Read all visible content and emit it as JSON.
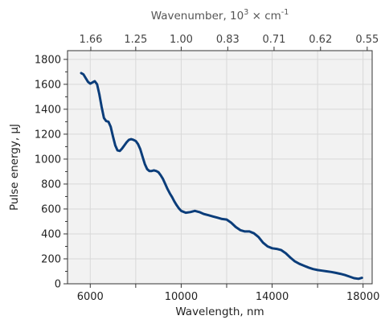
{
  "chart_data": {
    "type": "line",
    "xlabel": "Wavelength, nm",
    "ylabel": "Pulse energy, µJ",
    "top_axis": {
      "label_main": "Wavenumber, 10",
      "label_sup1": "3",
      "label_mid": " × cm",
      "label_sup2": "-1",
      "ticks": [
        {
          "label": "1.66",
          "wavelength": 6024
        },
        {
          "label": "1.25",
          "wavelength": 8000
        },
        {
          "label": "1.00",
          "wavelength": 10000
        },
        {
          "label": "0.83",
          "wavelength": 12048
        },
        {
          "label": "0.71",
          "wavelength": 14085
        },
        {
          "label": "0.62",
          "wavelength": 16129
        },
        {
          "label": "0.55",
          "wavelength": 18182
        }
      ]
    },
    "xlim": [
      5000,
      18400
    ],
    "ylim": [
      0,
      1870
    ],
    "x_ticks": [
      6000,
      10000,
      14000,
      18000
    ],
    "x_ticks_unlabeled": [
      8000,
      12000,
      16000
    ],
    "y_ticks": [
      0,
      200,
      400,
      600,
      800,
      1000,
      1200,
      1400,
      1600,
      1800
    ],
    "grid": true,
    "series": [
      {
        "color": "#0b3d7a",
        "x": [
          5600,
          5700,
          5800,
          5900,
          6000,
          6100,
          6200,
          6300,
          6400,
          6500,
          6600,
          6700,
          6800,
          6900,
          7000,
          7100,
          7200,
          7300,
          7400,
          7500,
          7600,
          7700,
          7800,
          7900,
          8000,
          8100,
          8200,
          8300,
          8400,
          8500,
          8600,
          8700,
          8800,
          8900,
          9000,
          9100,
          9200,
          9300,
          9400,
          9500,
          9600,
          9700,
          9800,
          9900,
          10000,
          10200,
          10400,
          10600,
          10800,
          11000,
          11200,
          11400,
          11600,
          11800,
          12000,
          12200,
          12400,
          12600,
          12800,
          13000,
          13200,
          13400,
          13600,
          13800,
          14000,
          14200,
          14400,
          14600,
          14800,
          15000,
          15200,
          15400,
          15600,
          15800,
          16000,
          16200,
          16400,
          16600,
          16800,
          17000,
          17200,
          17400,
          17600,
          17800,
          17950
        ],
        "y": [
          1690,
          1680,
          1650,
          1620,
          1605,
          1615,
          1625,
          1600,
          1520,
          1420,
          1330,
          1305,
          1300,
          1260,
          1180,
          1110,
          1070,
          1065,
          1085,
          1110,
          1135,
          1155,
          1160,
          1155,
          1145,
          1120,
          1080,
          1020,
          960,
          920,
          905,
          905,
          910,
          905,
          895,
          870,
          840,
          800,
          760,
          725,
          695,
          660,
          630,
          605,
          585,
          570,
          575,
          585,
          575,
          560,
          550,
          540,
          530,
          520,
          515,
          490,
          455,
          430,
          420,
          420,
          405,
          375,
          330,
          300,
          285,
          280,
          270,
          245,
          210,
          180,
          160,
          145,
          130,
          118,
          110,
          105,
          100,
          95,
          88,
          80,
          70,
          58,
          45,
          40,
          48
        ]
      }
    ]
  }
}
